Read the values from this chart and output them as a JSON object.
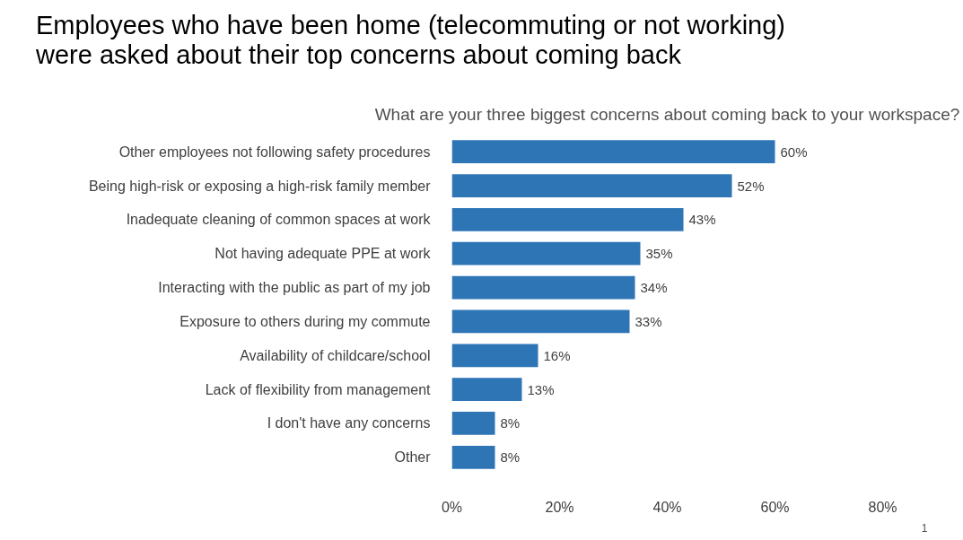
{
  "chart_data": {
    "type": "bar",
    "orientation": "horizontal",
    "title": "Employees who have been home (telecommuting or not working) were asked about their top concerns about coming back",
    "subtitle": "What are your three biggest concerns about coming back to your workspace?",
    "categories": [
      "Other employees not following safety procedures",
      "Being high-risk or exposing a high-risk family member",
      "Inadequate cleaning of common spaces at work",
      "Not having adequate PPE at work",
      "Interacting with the public as part of my job",
      "Exposure to others during my commute",
      "Availability of childcare/school",
      "Lack of flexibility from management",
      "I don't have any concerns",
      "Other"
    ],
    "values": [
      60,
      52,
      43,
      35,
      34,
      33,
      16,
      13,
      8,
      8
    ],
    "value_labels": [
      "60%",
      "52%",
      "43%",
      "35%",
      "34%",
      "33%",
      "16%",
      "13%",
      "8%",
      "8%"
    ],
    "color": "#2e75b6",
    "xlim": [
      0,
      80
    ],
    "xticks": [
      {
        "value": 0,
        "label": "0%"
      },
      {
        "value": 20,
        "label": "20%"
      },
      {
        "value": 40,
        "label": "40%"
      },
      {
        "value": 60,
        "label": "60%"
      },
      {
        "value": 80,
        "label": "80%"
      }
    ],
    "grid": false,
    "annotations": [
      "1"
    ]
  }
}
